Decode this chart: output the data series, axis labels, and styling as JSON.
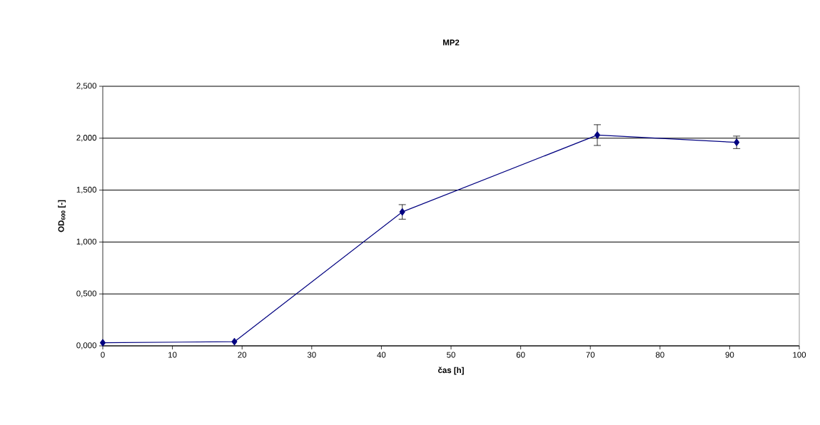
{
  "chart_data": {
    "type": "line",
    "title": "MP2",
    "xlabel": "čas [h]",
    "ylabel": "OD$_{600}$ [-]",
    "x": [
      0,
      18.9,
      43,
      71,
      91
    ],
    "series": [
      {
        "color": "#000080",
        "values": [
          0.03,
          0.04,
          1.29,
          2.03,
          1.96
        ],
        "errors": [
          null,
          null,
          0.07,
          0.1,
          0.06
        ]
      }
    ],
    "xlim": [
      0,
      100
    ],
    "xticks": [
      0,
      10,
      20,
      30,
      40,
      50,
      60,
      70,
      80,
      90,
      100
    ],
    "ylim": [
      0,
      2.5
    ],
    "yticks": [
      {
        "value": 0,
        "label": "0,000"
      },
      {
        "value": 0.5,
        "label": "0,500"
      },
      {
        "value": 1,
        "label": "1,000"
      },
      {
        "value": 1.5,
        "label": "1,500"
      },
      {
        "value": 2,
        "label": "2,000"
      },
      {
        "value": 2.5,
        "label": "2,500"
      }
    ],
    "grid": "y",
    "marker": "diamond",
    "line_style": "solid"
  }
}
